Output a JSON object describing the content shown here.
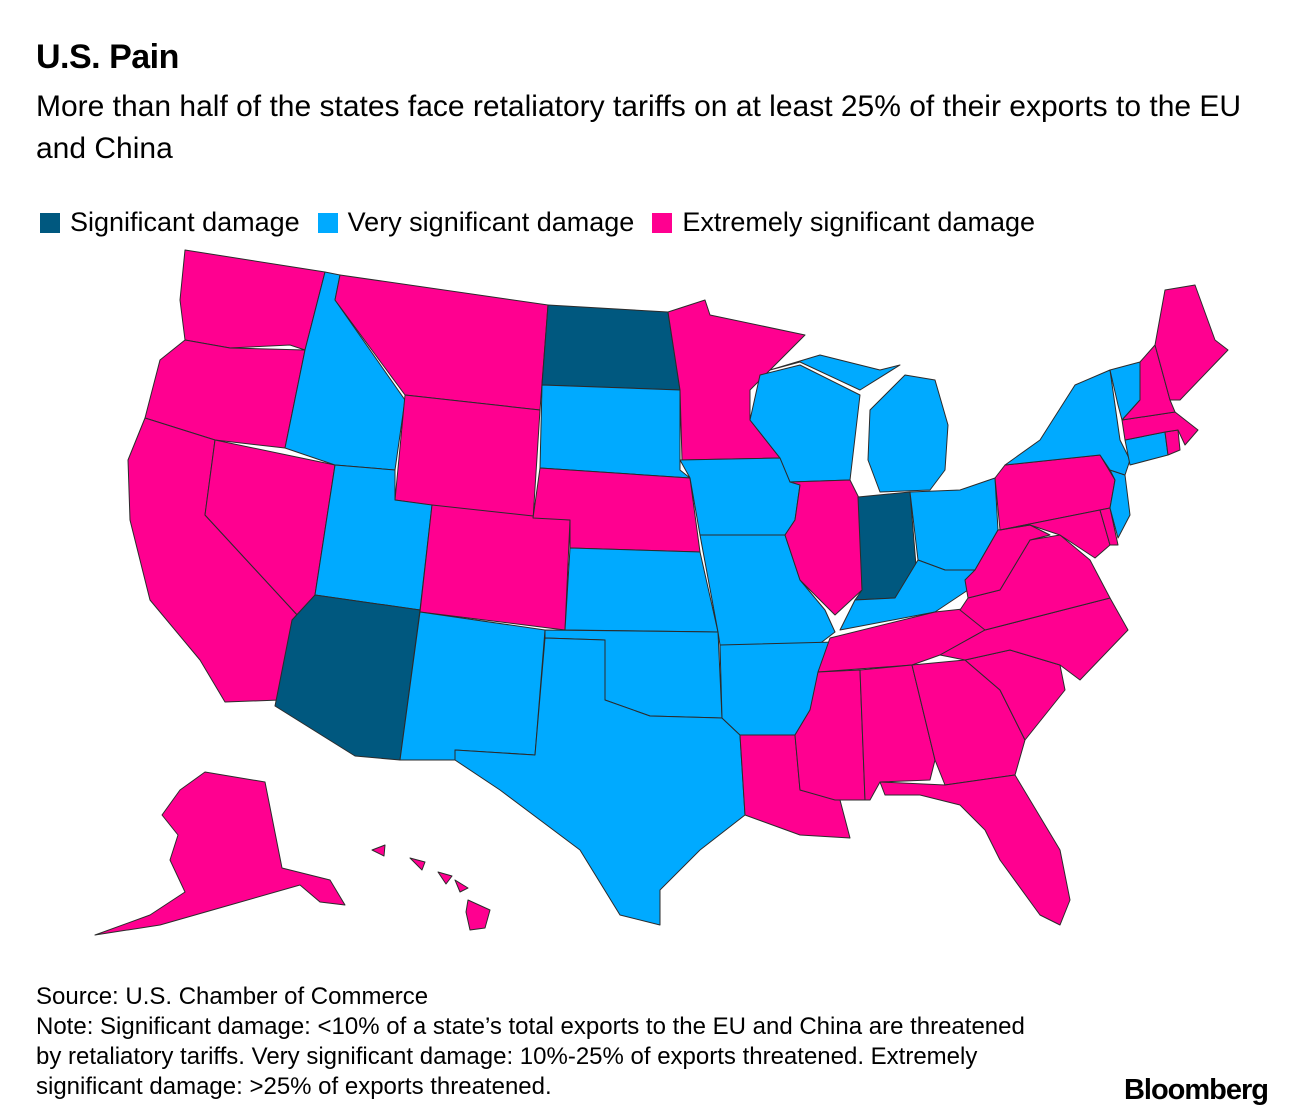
{
  "title": "U.S. Pain",
  "subtitle": "More than half of the states face retaliatory tariffs on at least 25% of their exports to the EU and China",
  "legend": [
    {
      "key": "significant",
      "label": "Significant damage",
      "color": "#00587f"
    },
    {
      "key": "very",
      "label": "Very significant damage",
      "color": "#00aaff"
    },
    {
      "key": "extreme",
      "label": "Extremely significant damage",
      "color": "#ff0090"
    }
  ],
  "states": {
    "WA": "extreme",
    "OR": "extreme",
    "CA": "extreme",
    "NV": "extreme",
    "ID": "very",
    "MT": "extreme",
    "WY": "extreme",
    "UT": "very",
    "AZ": "significant",
    "CO": "extreme",
    "NM": "very",
    "ND": "significant",
    "SD": "very",
    "NE": "extreme",
    "KS": "very",
    "OK": "very",
    "TX": "very",
    "MN": "extreme",
    "IA": "very",
    "MO": "very",
    "AR": "very",
    "LA": "extreme",
    "WI": "very",
    "IL": "extreme",
    "MI": "very",
    "IN": "significant",
    "OH": "very",
    "KY": "very",
    "TN": "extreme",
    "MS": "extreme",
    "AL": "extreme",
    "GA": "extreme",
    "FL": "extreme",
    "SC": "extreme",
    "NC": "extreme",
    "VA": "extreme",
    "WV": "extreme",
    "PA": "extreme",
    "NY": "very",
    "VT": "very",
    "NH": "extreme",
    "ME": "extreme",
    "MA": "extreme",
    "RI": "extreme",
    "CT": "very",
    "NJ": "very",
    "DE": "extreme",
    "MD": "extreme",
    "AK": "extreme",
    "HI": "extreme"
  },
  "source": "Source: U.S. Chamber of Commerce",
  "note": "Note: Significant damage: <10% of a state’s total exports to the EU and China are threatened by retaliatory tariffs. Very significant damage: 10%-25% of exports threatened. Extremely significant damage: >25% of exports threatened.",
  "brand": "Bloomberg"
}
